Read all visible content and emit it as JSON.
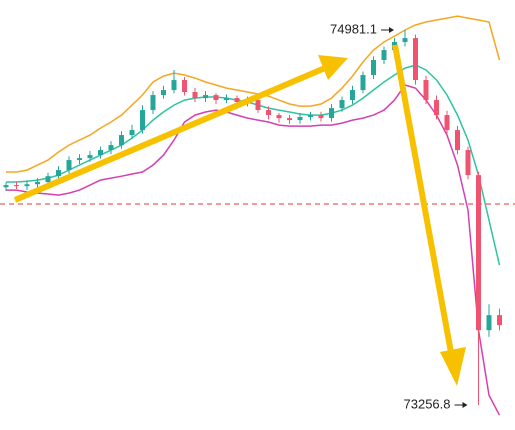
{
  "chart_data": {
    "type": "candlestick",
    "open": [
      74258,
      74268,
      74263,
      74272,
      74282,
      74309,
      74337,
      74383,
      74392,
      74406,
      74429,
      74452,
      74498,
      74521,
      74613,
      74682,
      74705,
      74751,
      74696,
      74668,
      74682,
      74659,
      74668,
      74650,
      74659,
      74613,
      74590,
      74576,
      74567,
      74581,
      74590,
      74576,
      74622,
      74659,
      74705,
      74774,
      74843,
      74889,
      74926,
      74944,
      74751,
      74659,
      74590,
      74521,
      74429,
      74314,
      73601,
      73670
    ],
    "high": [
      74280,
      74285,
      74290,
      74300,
      74325,
      74355,
      74400,
      74410,
      74425,
      74445,
      74470,
      74515,
      74545,
      74635,
      74700,
      74725,
      74797,
      74765,
      74715,
      74700,
      74690,
      74685,
      74680,
      74675,
      74670,
      74630,
      74600,
      74590,
      74600,
      74605,
      74605,
      74640,
      74675,
      74725,
      74790,
      74860,
      74905,
      74945,
      74981.1,
      74960,
      74770,
      74680,
      74610,
      74540,
      74445,
      74330,
      73720,
      73700
    ],
    "low": [
      74240,
      74250,
      74245,
      74255,
      74265,
      74295,
      74320,
      74365,
      74375,
      74390,
      74410,
      74435,
      74480,
      74505,
      74595,
      74665,
      74690,
      74680,
      74650,
      74650,
      74640,
      74645,
      74635,
      74630,
      74600,
      74570,
      74555,
      74550,
      74550,
      74565,
      74560,
      74560,
      74605,
      74640,
      74690,
      74755,
      74825,
      74870,
      74905,
      74730,
      74640,
      74570,
      74500,
      74410,
      74295,
      73256.8,
      73570,
      73600
    ],
    "close": [
      74268,
      74263,
      74272,
      74282,
      74309,
      74337,
      74383,
      74392,
      74406,
      74429,
      74452,
      74498,
      74521,
      74613,
      74682,
      74705,
      74751,
      74696,
      74668,
      74682,
      74659,
      74668,
      74650,
      74659,
      74613,
      74590,
      74576,
      74567,
      74581,
      74590,
      74576,
      74622,
      74659,
      74705,
      74774,
      74843,
      74889,
      74926,
      74944,
      74751,
      74659,
      74590,
      74521,
      74429,
      74314,
      73601,
      73670,
      73624
    ],
    "up_color": "#26a69a",
    "down_color": "#ef5370",
    "bands": [
      {
        "color": "#f5a623",
        "values": [
          74328,
          74328,
          74337,
          74360,
          74383,
          74420,
          74452,
          74475,
          74498,
          74530,
          74558,
          74590,
          74636,
          74682,
          74742,
          74769,
          74783,
          74774,
          74760,
          74742,
          74728,
          74714,
          74705,
          74696,
          74687,
          74677,
          74659,
          74641,
          74631,
          74631,
          74641,
          74668,
          74714,
          74769,
          74834,
          74889,
          74926,
          74953,
          74981,
          75004,
          75018,
          75027,
          75036,
          75045,
          75036,
          75027,
          75018,
          74843
        ]
      },
      {
        "color": "#2ec4a0",
        "values": [
          74282,
          74282,
          74286,
          74291,
          74300,
          74314,
          74337,
          74360,
          74383,
          74406,
          74429,
          74452,
          74484,
          74521,
          74567,
          74604,
          74636,
          74659,
          74668,
          74673,
          74673,
          74668,
          74659,
          74650,
          74636,
          74622,
          74613,
          74604,
          74595,
          74590,
          74590,
          74599,
          74613,
          74636,
          74668,
          74705,
          74742,
          74774,
          74806,
          74820,
          74797,
          74751,
          74682,
          74590,
          74475,
          74314,
          74107,
          73900
        ]
      },
      {
        "color": "#d63fb0",
        "values": [
          74245,
          74245,
          74236,
          74231,
          74227,
          74222,
          74231,
          74245,
          74268,
          74291,
          74300,
          74309,
          74319,
          74328,
          74360,
          74406,
          74475,
          74558,
          74590,
          74604,
          74613,
          74604,
          74590,
          74576,
          74567,
          74558,
          74544,
          74539,
          74539,
          74539,
          74544,
          74544,
          74553,
          74567,
          74576,
          74590,
          74613,
          74659,
          74728,
          74714,
          74659,
          74590,
          74498,
          74360,
          74153,
          73601,
          73302,
          73210
        ]
      }
    ],
    "price_line": 74181,
    "price_line_color": "#e53935",
    "annotations": [
      "74981.1",
      "73256.8"
    ]
  }
}
